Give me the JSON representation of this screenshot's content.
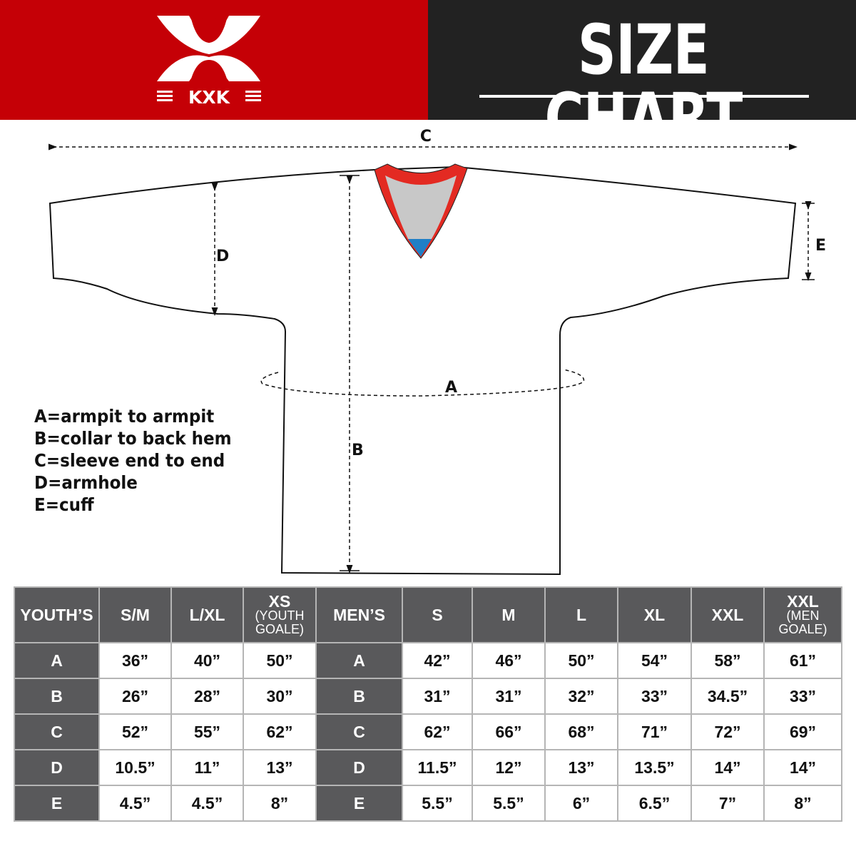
{
  "brand": {
    "logo_text": "KXK",
    "color": "#c50006"
  },
  "header": {
    "title": "SIZE CHART"
  },
  "diagram": {
    "labels": {
      "a": "A",
      "b": "B",
      "c": "C",
      "d": "D",
      "e": "E"
    }
  },
  "legend": [
    "A=armpit to armpit",
    "B=collar to back hem",
    "C=sleeve end to end",
    "D=armhole",
    "E=cuff"
  ],
  "table": {
    "header": [
      {
        "main": "YOUTH’S"
      },
      {
        "main": "S/M"
      },
      {
        "main": "L/XL"
      },
      {
        "main": "XS",
        "sub": "(YOUTH GOALE)"
      },
      {
        "main": "MEN’S"
      },
      {
        "main": "S"
      },
      {
        "main": "M"
      },
      {
        "main": "L"
      },
      {
        "main": "XL"
      },
      {
        "main": "XXL"
      },
      {
        "main": "XXL",
        "sub": "(MEN GOALE)"
      }
    ],
    "rows": [
      {
        "youth_label": "A",
        "youth": [
          "36”",
          "40”",
          "50”"
        ],
        "men_label": "A",
        "men": [
          "42”",
          "46”",
          "50”",
          "54”",
          "58”",
          "61”"
        ]
      },
      {
        "youth_label": "B",
        "youth": [
          "26”",
          "28”",
          "30”"
        ],
        "men_label": "B",
        "men": [
          "31”",
          "31”",
          "32”",
          "33”",
          "34.5”",
          "33”"
        ]
      },
      {
        "youth_label": "C",
        "youth": [
          "52”",
          "55”",
          "62”"
        ],
        "men_label": "C",
        "men": [
          "62”",
          "66”",
          "68”",
          "71”",
          "72”",
          "69”"
        ]
      },
      {
        "youth_label": "D",
        "youth": [
          "10.5”",
          "11”",
          "13”"
        ],
        "men_label": "D",
        "men": [
          "11.5”",
          "12”",
          "13”",
          "13.5”",
          "14”",
          "14”"
        ]
      },
      {
        "youth_label": "E",
        "youth": [
          "4.5”",
          "4.5”",
          "8”"
        ],
        "men_label": "E",
        "men": [
          "5.5”",
          "5.5”",
          "6”",
          "6.5”",
          "7”",
          "8”"
        ]
      }
    ]
  }
}
